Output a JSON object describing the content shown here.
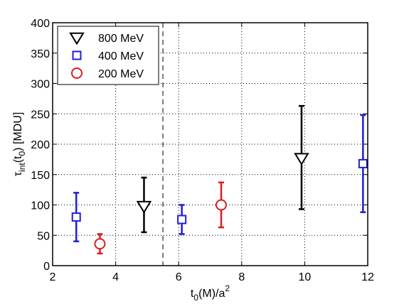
{
  "chart_data": {
    "type": "scatter",
    "xlabel": {
      "base": "t",
      "sub": "0",
      "rest": "(M)/a",
      "sup": "2"
    },
    "ylabel": {
      "pre": "τ",
      "sub": "int",
      "mid": "(t",
      "sub2": "0",
      "post": ") [MDU]"
    },
    "xlim": [
      2,
      12
    ],
    "ylim": [
      0,
      400
    ],
    "xticks": [
      2,
      4,
      6,
      8,
      10,
      12
    ],
    "yticks": [
      0,
      50,
      100,
      150,
      200,
      250,
      300,
      350,
      400
    ],
    "xtick_labels": [
      "2",
      "4",
      "6",
      "8",
      "10",
      "12"
    ],
    "ytick_labels": [
      "0",
      "50",
      "100",
      "150",
      "200",
      "250",
      "300",
      "350",
      "400"
    ],
    "grid": "dotted",
    "legend_position": "top-left",
    "vline": {
      "x": 5.5,
      "style": "dashed"
    },
    "series": [
      {
        "name": "800 MeV",
        "marker": "triangle-down",
        "color": "#000000",
        "points": [
          {
            "x": 4.9,
            "y": 98,
            "lo": 55,
            "hi": 145
          },
          {
            "x": 9.9,
            "y": 177,
            "lo": 93,
            "hi": 263
          }
        ]
      },
      {
        "name": "400 MeV",
        "marker": "square",
        "color": "#1f1fd6",
        "points": [
          {
            "x": 2.75,
            "y": 80,
            "lo": 40,
            "hi": 120
          },
          {
            "x": 6.1,
            "y": 76,
            "lo": 52,
            "hi": 100
          },
          {
            "x": 11.85,
            "y": 168,
            "lo": 88,
            "hi": 248
          }
        ]
      },
      {
        "name": "200 MeV",
        "marker": "circle",
        "color": "#e01b1b",
        "points": [
          {
            "x": 3.5,
            "y": 36,
            "lo": 20,
            "hi": 52
          },
          {
            "x": 7.35,
            "y": 100,
            "lo": 63,
            "hi": 137
          }
        ]
      }
    ]
  }
}
